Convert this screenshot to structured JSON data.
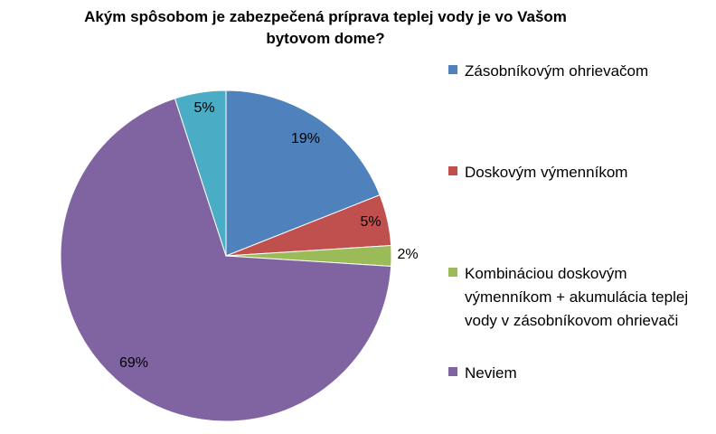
{
  "chart_data": {
    "type": "pie",
    "title": "Akým spôsobom   je zabezpečená príprava teplej vody je vo Vašom bytovom dome?",
    "title_lines": [
      "Akým spôsobom   je zabezpečená príprava teplej vody je vo Vašom",
      "bytovom dome?"
    ],
    "slices": [
      {
        "name": "Zásobníkovým ohrievačom",
        "value": 19,
        "label": "19%",
        "color": "#4F81BD"
      },
      {
        "name": "Doskovým výmenníkom",
        "value": 5,
        "label": "5%",
        "color": "#C0504D"
      },
      {
        "name": "Kombináciou doskovým výmenníkom + akumulácia teplej vody v zásobníkovom ohrievači",
        "value": 2,
        "label": "2%",
        "color": "#9BBB59"
      },
      {
        "name": "Neviem",
        "value": 69,
        "label": "69%",
        "color": "#8064A2"
      },
      {
        "name": "",
        "value": 5,
        "label": "5%",
        "color": "#4BACC6"
      }
    ],
    "legend": [
      "Zásobníkovým ohrievačom",
      "Doskovým výmenníkom",
      "Kombináciou doskovým výmenníkom + akumulácia teplej vody v zásobníkovom ohrievači",
      "Neviem"
    ],
    "legend_position": "right"
  }
}
